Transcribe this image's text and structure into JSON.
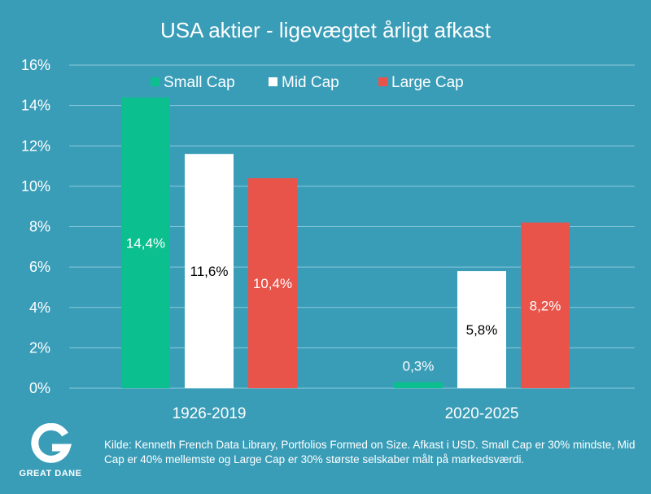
{
  "chart_data": {
    "type": "bar",
    "title": "USA aktier - ligevægtet årligt afkast",
    "categories": [
      "1926-2019",
      "2020-2025"
    ],
    "series": [
      {
        "name": "Small Cap",
        "color": "#0cbf8e",
        "values": [
          14.4,
          0.3
        ],
        "labels": [
          "14,4%",
          "0,3%"
        ],
        "label_color": "#ffffff"
      },
      {
        "name": "Mid Cap",
        "color": "#ffffff",
        "values": [
          11.6,
          5.8
        ],
        "labels": [
          "11,6%",
          "5,8%"
        ],
        "label_color": "#000000"
      },
      {
        "name": "Large Cap",
        "color": "#e8544a",
        "values": [
          10.4,
          8.2
        ],
        "labels": [
          "10,4%",
          "8,2%"
        ],
        "label_color": "#ffffff"
      }
    ],
    "ylim": [
      0,
      16
    ],
    "yticks": [
      0,
      2,
      4,
      6,
      8,
      10,
      12,
      14,
      16
    ],
    "ytick_labels": [
      "0%",
      "2%",
      "4%",
      "6%",
      "8%",
      "10%",
      "12%",
      "14%",
      "16%"
    ],
    "grid": true,
    "legend_position": "top"
  },
  "logo": {
    "name": "GREAT DANE"
  },
  "source_text": "Kilde: Kenneth French Data Library, Portfolios Formed on Size. Afkast i USD. Small Cap er 30% mindste, Mid Cap er 40% mellemste og Large Cap er 30% største selskaber målt på markedsværdi."
}
